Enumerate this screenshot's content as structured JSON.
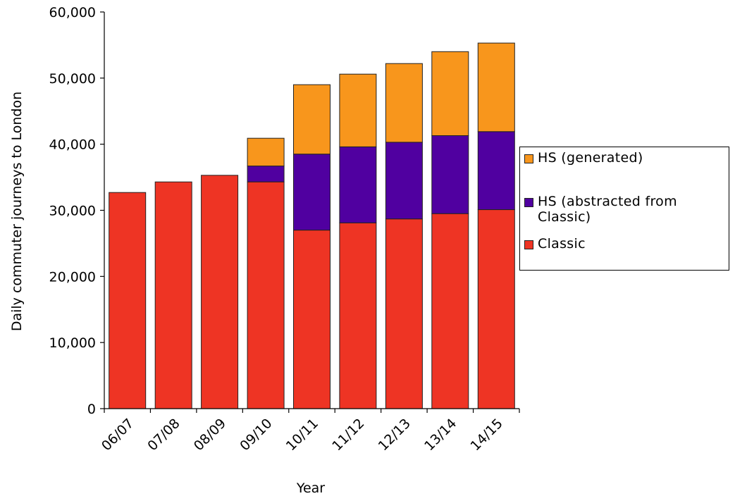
{
  "chart_data": {
    "type": "bar",
    "stacked": true,
    "categories": [
      "06/07",
      "07/08",
      "08/09",
      "09/10",
      "10/11",
      "11/12",
      "12/13",
      "13/14",
      "14/15"
    ],
    "series": [
      {
        "name": "Classic",
        "color": "#ee3424",
        "values": [
          32700,
          34300,
          35300,
          34300,
          27000,
          28100,
          28700,
          29500,
          30100
        ]
      },
      {
        "name": "HS (abstracted from Classic)",
        "color": "#5000a0",
        "values": [
          0,
          0,
          0,
          2400,
          11500,
          11500,
          11600,
          11800,
          11800
        ]
      },
      {
        "name": "HS (generated)",
        "color": "#f8961c",
        "values": [
          0,
          0,
          0,
          4200,
          10500,
          11000,
          11900,
          12700,
          13400
        ]
      }
    ],
    "xlabel": "Year",
    "ylabel": "Daily commuter journeys to London",
    "ylim": [
      0,
      60000
    ],
    "yticks": [
      0,
      10000,
      20000,
      30000,
      40000,
      50000,
      60000
    ],
    "ytick_labels": [
      "0",
      "10,000",
      "20,000",
      "30,000",
      "40,000",
      "50,000",
      "60,000"
    ],
    "grid": false,
    "legend_position": "right",
    "legend_order": [
      "HS (generated)",
      "HS (abstracted from\nClassic)",
      "Classic"
    ]
  }
}
